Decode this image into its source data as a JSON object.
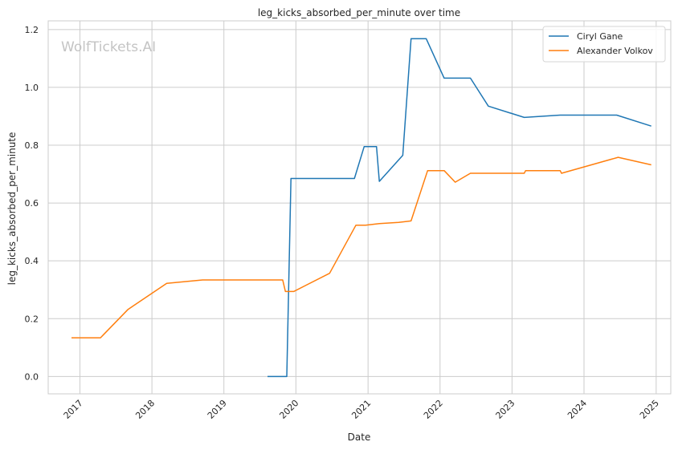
{
  "chart_data": {
    "type": "line",
    "title": "leg_kicks_absorbed_per_minute over time",
    "xlabel": "Date",
    "ylabel": "leg_kicks_absorbed_per_minute",
    "watermark": "WolfTickets.AI",
    "xlim": [
      "2016-07-24",
      "2025-03-16"
    ],
    "ylim": [
      -0.06,
      1.23
    ],
    "x_ticks": [
      "2017",
      "2018",
      "2019",
      "2020",
      "2021",
      "2022",
      "2023",
      "2024",
      "2025"
    ],
    "y_ticks": [
      "0.0",
      "0.2",
      "0.4",
      "0.6",
      "0.8",
      "1.0",
      "1.2"
    ],
    "y_tick_values": [
      0.0,
      0.2,
      0.4,
      0.6,
      0.8,
      1.0,
      1.2
    ],
    "grid": true,
    "legend_position": "top-right",
    "series": [
      {
        "name": "Ciryl Gane",
        "color": "#1f77b4",
        "points": [
          [
            "2019-08-10",
            0.0
          ],
          [
            "2019-10-12",
            0.0
          ],
          [
            "2019-11-16",
            0.0
          ],
          [
            "2019-12-07",
            0.685
          ],
          [
            "2020-10-24",
            0.685
          ],
          [
            "2020-12-12",
            0.795
          ],
          [
            "2021-02-13",
            0.795
          ],
          [
            "2021-02-27",
            0.675
          ],
          [
            "2021-06-26",
            0.765
          ],
          [
            "2021-08-07",
            1.168
          ],
          [
            "2021-10-23",
            1.168
          ],
          [
            "2022-01-22",
            1.032
          ],
          [
            "2022-06-04",
            1.032
          ],
          [
            "2022-09-03",
            0.935
          ],
          [
            "2023-03-04",
            0.896
          ],
          [
            "2023-09-02",
            0.904
          ],
          [
            "2024-06-15",
            0.904
          ],
          [
            "2024-12-07",
            0.866
          ]
        ]
      },
      {
        "name": "Alexander Volkov",
        "color": "#ff7f0e",
        "points": [
          [
            "2016-11-19",
            0.134
          ],
          [
            "2017-04-15",
            0.134
          ],
          [
            "2017-09-02",
            0.232
          ],
          [
            "2018-03-17",
            0.322
          ],
          [
            "2018-09-15",
            0.334
          ],
          [
            "2019-10-26",
            0.334
          ],
          [
            "2019-11-09",
            0.294
          ],
          [
            "2019-12-21",
            0.294
          ],
          [
            "2020-06-20",
            0.357
          ],
          [
            "2020-10-31",
            0.523
          ],
          [
            "2020-12-19",
            0.523
          ],
          [
            "2021-02-27",
            0.529
          ],
          [
            "2021-06-05",
            0.533
          ],
          [
            "2021-08-07",
            0.538
          ],
          [
            "2021-10-30",
            0.712
          ],
          [
            "2022-01-22",
            0.712
          ],
          [
            "2022-03-19",
            0.672
          ],
          [
            "2022-06-04",
            0.703
          ],
          [
            "2023-03-04",
            0.703
          ],
          [
            "2023-03-11",
            0.712
          ],
          [
            "2023-09-02",
            0.712
          ],
          [
            "2023-09-09",
            0.703
          ],
          [
            "2024-06-22",
            0.758
          ],
          [
            "2024-12-07",
            0.732
          ]
        ]
      }
    ]
  }
}
